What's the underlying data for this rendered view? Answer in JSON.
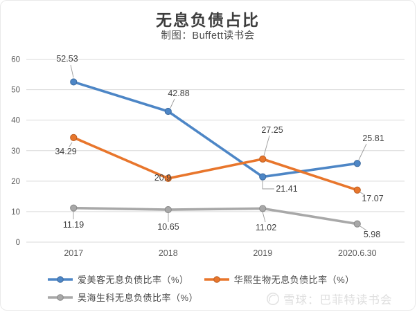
{
  "title": "无息负债占比",
  "subtitle": "制图：Buffett读书会",
  "watermark": {
    "icon": "snowball-logo",
    "text": "雪球：巴菲特读书会"
  },
  "chart_data": {
    "type": "line",
    "title": "无息负债占比",
    "subtitle": "制图：Buffett读书会",
    "categories": [
      "2017",
      "2018",
      "2019",
      "2020.6.30"
    ],
    "series": [
      {
        "name": "爱美客无息负债比率（%）",
        "color": "#4d86c6",
        "values": [
          52.53,
          42.88,
          21.41,
          25.81
        ]
      },
      {
        "name": "华熙生物无息负债比率（%）",
        "color": "#e8762c",
        "values": [
          34.29,
          20.9,
          27.25,
          17.07
        ]
      },
      {
        "name": "昊海生科无息负债比率（%）",
        "color": "#a8a8a8",
        "values": [
          11.19,
          10.65,
          11.02,
          5.98
        ]
      }
    ],
    "ylim": [
      0,
      60
    ],
    "ytick_step": 10,
    "yticks": [
      0,
      10,
      20,
      30,
      40,
      50,
      60
    ],
    "grid": true,
    "data_labels": true,
    "legend_position": "bottom-left",
    "axis_text_color": "#595959",
    "gridline_color": "#d9d9d9",
    "label_text_color": "#3f3f3f",
    "leader_line_color": "#9a9a9a"
  }
}
